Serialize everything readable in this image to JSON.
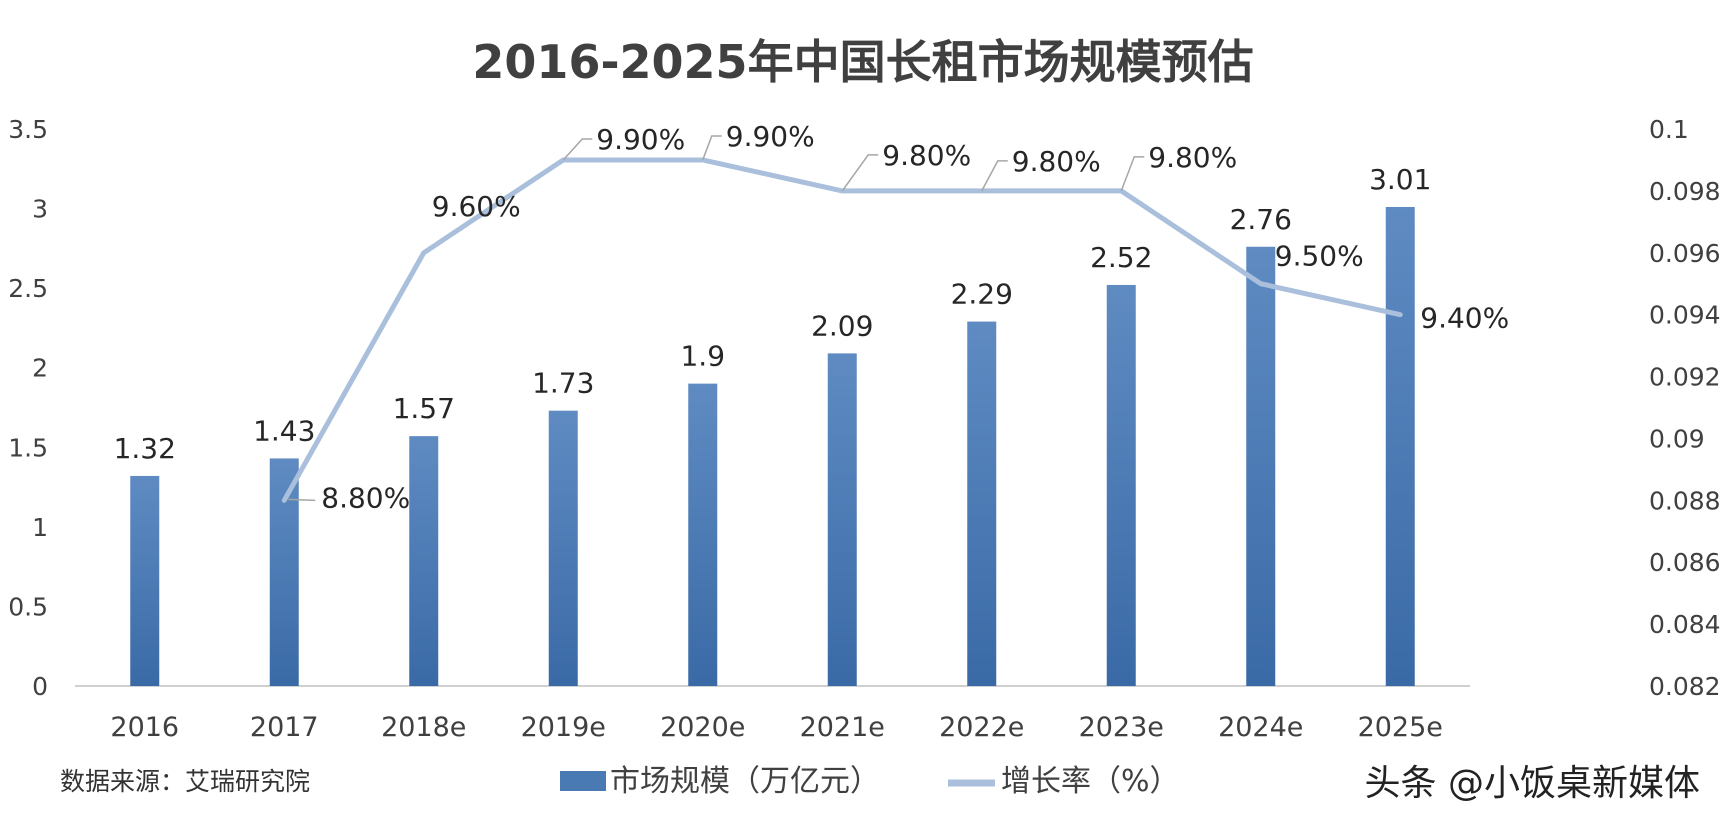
{
  "chart_data": {
    "type": "bar",
    "title": "2016-2025年中国长租市场规模预估",
    "categories": [
      "2016",
      "2017",
      "2018e",
      "2019e",
      "2020e",
      "2021e",
      "2022e",
      "2023e",
      "2024e",
      "2025e"
    ],
    "series": [
      {
        "name": "市场规模（万亿元）",
        "type": "bar",
        "axis": "left",
        "color": "#4a7ab4",
        "values": [
          1.32,
          1.43,
          1.57,
          1.73,
          1.9,
          2.09,
          2.29,
          2.52,
          2.76,
          3.01
        ],
        "labels": [
          "1.32",
          "1.43",
          "1.57",
          "1.73",
          "1.9",
          "2.09",
          "2.29",
          "2.52",
          "2.76",
          "3.01"
        ]
      },
      {
        "name": "增长率（%）",
        "type": "line",
        "axis": "right",
        "color": "#a9bfdc",
        "values": [
          null,
          0.088,
          0.096,
          0.099,
          0.099,
          0.098,
          0.098,
          0.098,
          0.095,
          0.094
        ],
        "labels": [
          "",
          "8.80%",
          "9.60%",
          "9.90%",
          "9.90%",
          "9.80%",
          "9.80%",
          "9.80%",
          "9.50%",
          "9.40%"
        ]
      }
    ],
    "y_left": {
      "min": 0,
      "max": 3.5,
      "ticks": [
        0,
        0.5,
        1,
        1.5,
        2,
        2.5,
        3,
        3.5
      ],
      "tick_labels": [
        "0",
        "0.5",
        "1",
        "1.5",
        "2",
        "2.5",
        "3",
        "3.5"
      ]
    },
    "y_right": {
      "min": 0.082,
      "max": 0.1,
      "ticks": [
        0.082,
        0.084,
        0.086,
        0.088,
        0.09,
        0.092,
        0.094,
        0.096,
        0.098,
        0.1
      ],
      "tick_labels": [
        "0.082",
        "0.084",
        "0.086",
        "0.088",
        "0.09",
        "0.092",
        "0.094",
        "0.096",
        "0.098",
        "0.1"
      ]
    },
    "grid": false,
    "legend_position": "bottom"
  },
  "source_note": "数据来源：艾瑞研究院",
  "watermark": "头条 @小饭桌新媒体"
}
